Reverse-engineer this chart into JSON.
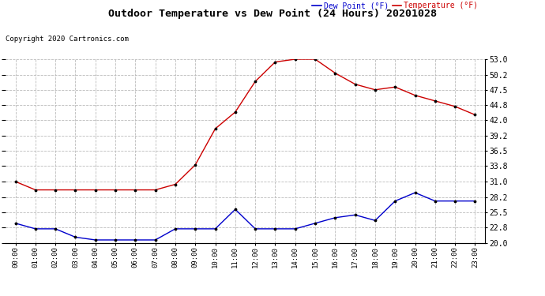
{
  "title": "Outdoor Temperature vs Dew Point (24 Hours) 20201028",
  "copyright": "Copyright 2020 Cartronics.com",
  "hours": [
    "00:00",
    "01:00",
    "02:00",
    "03:00",
    "04:00",
    "05:00",
    "06:00",
    "07:00",
    "08:00",
    "09:00",
    "10:00",
    "11:00",
    "12:00",
    "13:00",
    "14:00",
    "15:00",
    "16:00",
    "17:00",
    "18:00",
    "19:00",
    "20:00",
    "21:00",
    "22:00",
    "23:00"
  ],
  "temperature": [
    31.0,
    29.5,
    29.5,
    29.5,
    29.5,
    29.5,
    29.5,
    29.5,
    30.5,
    34.0,
    40.5,
    43.5,
    49.0,
    52.5,
    53.0,
    53.0,
    50.5,
    48.5,
    47.5,
    48.0,
    46.5,
    45.5,
    44.5,
    43.0
  ],
  "dew_point": [
    23.5,
    22.5,
    22.5,
    21.0,
    20.5,
    20.5,
    20.5,
    20.5,
    22.5,
    22.5,
    22.5,
    26.0,
    22.5,
    22.5,
    22.5,
    23.5,
    24.5,
    25.0,
    24.0,
    27.5,
    29.0,
    27.5,
    27.5,
    27.5
  ],
  "temp_color": "#cc0000",
  "dew_color": "#0000cc",
  "ylim": [
    20.0,
    53.0
  ],
  "yticks": [
    20.0,
    22.8,
    25.5,
    28.2,
    31.0,
    33.8,
    36.5,
    39.2,
    42.0,
    44.8,
    47.5,
    50.2,
    53.0
  ],
  "legend_dew_label": "Dew Point (°F)",
  "legend_temp_label": "Temperature (°F)",
  "background_color": "#ffffff",
  "grid_color": "#bbbbbb"
}
